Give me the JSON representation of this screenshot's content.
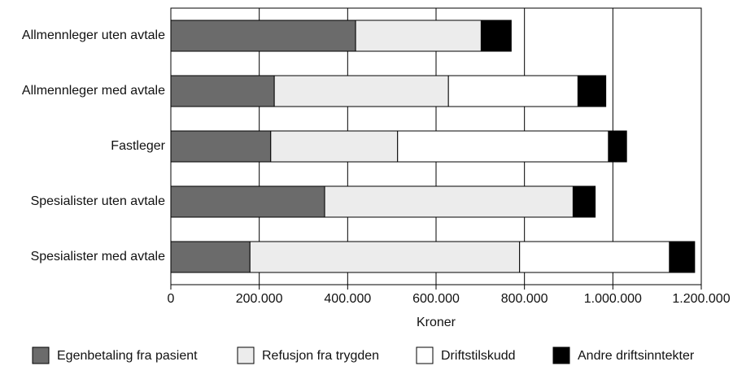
{
  "chart_data": {
    "type": "stacked-bar-horizontal",
    "x_label": "Kroner",
    "categories": [
      "Allmennleger uten avtale",
      "Allmennleger med avtale",
      "Fastleger",
      "Spesialister uten avtale",
      "Spesialister med avtale"
    ],
    "series": [
      {
        "name": "Egenbetaling fra pasient",
        "color": "#6b6b6b",
        "values": [
          418000,
          234000,
          226000,
          348000,
          179000
        ]
      },
      {
        "name": "Refusjon fra trygden",
        "color": "#ececec",
        "values": [
          284000,
          394000,
          287000,
          562000,
          610000
        ]
      },
      {
        "name": "Driftstilskudd",
        "color": "#ffffff",
        "values": [
          0,
          293000,
          477000,
          0,
          339000
        ]
      },
      {
        "name": "Andre driftsinntekter",
        "color": "#000000",
        "values": [
          68000,
          63000,
          41000,
          50000,
          57000
        ]
      }
    ],
    "xlim": [
      0,
      1200000
    ],
    "xticks": [
      0,
      {
        "value": 200000,
        "label": "200.000"
      },
      {
        "value": 400000,
        "label": "400.000"
      },
      {
        "value": 600000,
        "label": "600.000"
      },
      {
        "value": 800000,
        "label": "800.000"
      },
      {
        "value": 1000000,
        "label": "1.000.000"
      },
      {
        "value": 1200000,
        "label": "1.200.000"
      }
    ],
    "grid": true,
    "legend": "bottom"
  }
}
